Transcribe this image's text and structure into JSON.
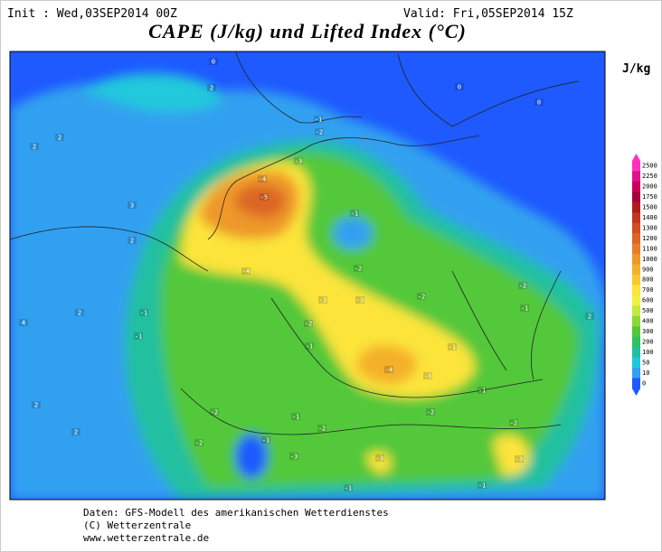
{
  "header": {
    "init": "Init : Wed,03SEP2014 00Z",
    "valid": "Valid: Fri,05SEP2014 15Z",
    "title": "CAPE (J/kg) und Lifted Index (°C)"
  },
  "unit": "J/kg",
  "colorbar": {
    "ticks": [
      2500,
      2250,
      2000,
      1750,
      1500,
      1400,
      1300,
      1200,
      1100,
      1000,
      900,
      800,
      700,
      600,
      500,
      400,
      300,
      200,
      100,
      50,
      10,
      0
    ],
    "colors": [
      "#ff30c0",
      "#e0108a",
      "#c8005a",
      "#a8003c",
      "#b01c1c",
      "#c0361e",
      "#d04e22",
      "#dc6626",
      "#e67e28",
      "#ee982a",
      "#f4b02c",
      "#f8c830",
      "#fce43a",
      "#f0f040",
      "#c4ea3c",
      "#8cd83a",
      "#52c83a",
      "#30c060",
      "#20c0a0",
      "#20c8dc",
      "#30a0f0",
      "#1e5aff"
    ]
  },
  "map_labels": [
    "-4",
    "-5",
    "-3",
    "-1",
    "-2",
    "-1",
    "-2",
    "-4",
    "-3",
    "-3",
    "-2",
    "-2",
    "-1",
    "-1",
    "-1",
    "-2",
    "-1",
    "-4",
    "-3",
    "-1",
    "-1",
    "-2",
    "-2",
    "-1",
    "-2",
    "-2",
    "-1",
    "-3",
    "-3",
    "-2",
    "-3",
    "-1",
    "-1",
    "0",
    "2",
    "2",
    "2",
    "3",
    "2",
    "2",
    "4",
    "2",
    "2",
    "0",
    "0",
    "2"
  ],
  "footer": {
    "source": "Daten: GFS-Modell des amerikanischen Wetterdienstes",
    "copyright": "(C) Wetterzentrale",
    "url": "www.wetterzentrale.de"
  }
}
